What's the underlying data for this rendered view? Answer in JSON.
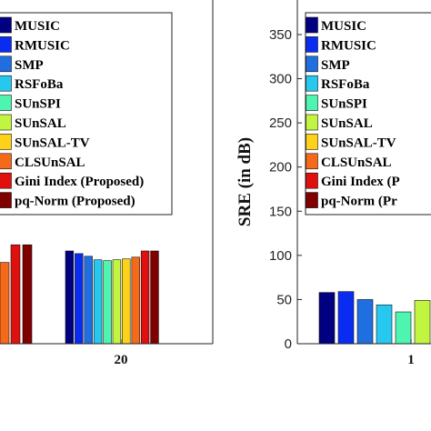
{
  "chart_data": [
    {
      "type": "bar",
      "categories": [
        "20"
      ],
      "ylim": [
        0,
        350
      ],
      "ylabel": "",
      "xlabel": "",
      "legend_position": "top",
      "series": [
        {
          "name": "MUSIC",
          "color": "#000080",
          "values": [
            105
          ]
        },
        {
          "name": "RMUSIC",
          "color": "#0a2cf0",
          "values": [
            102
          ]
        },
        {
          "name": "SMP",
          "color": "#1f6fe0",
          "values": [
            99
          ]
        },
        {
          "name": "RSFoBa",
          "color": "#26c8ef",
          "values": [
            95
          ]
        },
        {
          "name": "SUnSPI",
          "color": "#4ef5b0",
          "values": [
            94
          ]
        },
        {
          "name": "SUnSAL",
          "color": "#c2f542",
          "values": [
            95
          ]
        },
        {
          "name": "SUnSAL-TV",
          "color": "#ffd21a",
          "values": [
            96
          ]
        },
        {
          "name": "CLSUnSAL",
          "color": "#f56a1a",
          "values": [
            98
          ]
        },
        {
          "name": "Gini Index (Proposed)",
          "color": "#e0100f",
          "values": [
            105
          ]
        },
        {
          "name": "pq-Norm (Proposed)",
          "color": "#800000",
          "values": [
            105
          ]
        }
      ]
    },
    {
      "type": "bar",
      "categories": [
        "1"
      ],
      "ylim": [
        0,
        375
      ],
      "yticks": [
        0,
        50,
        100,
        150,
        200,
        250,
        300,
        350
      ],
      "ylabel": "SRE (in dB)",
      "xlabel": "",
      "legend_position": "top",
      "series": [
        {
          "name": "MUSIC",
          "color": "#000080",
          "values": [
            58
          ]
        },
        {
          "name": "RMUSIC",
          "color": "#0a2cf0",
          "values": [
            59
          ]
        },
        {
          "name": "SMP",
          "color": "#1f6fe0",
          "values": [
            50
          ]
        },
        {
          "name": "RSFoBa",
          "color": "#26c8ef",
          "values": [
            44
          ]
        },
        {
          "name": "SUnSPI",
          "color": "#4ef5b0",
          "values": [
            36
          ]
        },
        {
          "name": "SUnSAL",
          "color": "#c2f542",
          "values": [
            49
          ]
        }
      ]
    }
  ],
  "left_panel": {
    "category_label": "20",
    "legend": [
      {
        "label": "MUSIC",
        "color": "#000080"
      },
      {
        "label": "RMUSIC",
        "color": "#0a2cf0"
      },
      {
        "label": "SMP",
        "color": "#1f6fe0"
      },
      {
        "label": "RSFoBa",
        "color": "#26c8ef"
      },
      {
        "label": "SUnSPI",
        "color": "#4ef5b0"
      },
      {
        "label": "SUnSAL",
        "color": "#c2f542"
      },
      {
        "label": "SUnSAL-TV",
        "color": "#ffd21a"
      },
      {
        "label": "CLSUnSAL",
        "color": "#f56a1a"
      },
      {
        "label": "Gini Index (Proposed)",
        "color": "#e0100f"
      },
      {
        "label": "pq-Norm (Proposed)",
        "color": "#800000"
      }
    ]
  },
  "right_panel": {
    "ylabel": "SRE (in dB)",
    "category_label": "1",
    "legend": [
      {
        "label": "MUSIC",
        "color": "#000080"
      },
      {
        "label": "RMUSIC",
        "color": "#0a2cf0"
      },
      {
        "label": "SMP",
        "color": "#1f6fe0"
      },
      {
        "label": "RSFoBa",
        "color": "#26c8ef"
      },
      {
        "label": "SUnSPI",
        "color": "#4ef5b0"
      },
      {
        "label": "SUnSAL",
        "color": "#c2f542"
      },
      {
        "label": "SUnSAL-TV",
        "color": "#ffd21a"
      },
      {
        "label": "CLSUnSAL",
        "color": "#f56a1a"
      },
      {
        "label": "Gini Index (P",
        "color": "#e0100f"
      },
      {
        "label": "pq-Norm (Pr",
        "color": "#800000"
      }
    ]
  }
}
